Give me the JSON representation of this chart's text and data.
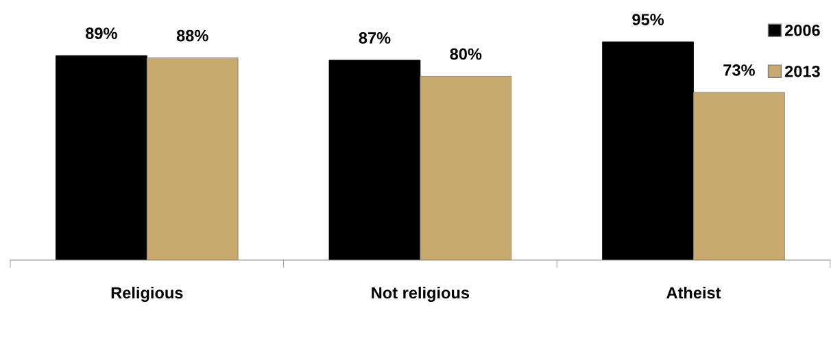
{
  "chart_data": {
    "type": "bar",
    "categories": [
      "Religious",
      "Not religious",
      "Atheist"
    ],
    "series": [
      {
        "name": "2006",
        "color": "#000000",
        "values": [
          89,
          87,
          95
        ],
        "value_labels": [
          "89%",
          "87%",
          "95%"
        ]
      },
      {
        "name": "2013",
        "color": "#c9aa6e",
        "values": [
          88,
          80,
          73
        ],
        "value_labels": [
          "88%",
          "80%",
          "73%"
        ]
      }
    ],
    "legend": "top right",
    "grid": false,
    "tick_labels": "x"
  }
}
